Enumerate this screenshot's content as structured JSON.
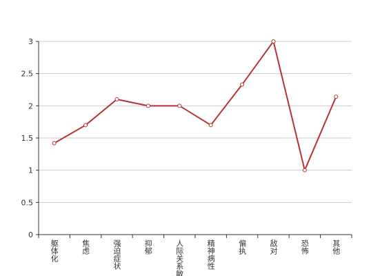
{
  "chart_data": {
    "type": "line",
    "categories": [
      "躯体化",
      "焦虑",
      "强迫症状",
      "抑郁",
      "人际关系敏感",
      "精神病性",
      "偏执",
      "敌对",
      "恐怖",
      "其他"
    ],
    "series": [
      {
        "name": "",
        "color": "#b83232",
        "values": [
          1.42,
          1.7,
          2.1,
          2.0,
          2.0,
          1.7,
          2.33,
          3.0,
          1.0,
          2.14
        ]
      }
    ],
    "ylim": [
      0,
      3
    ],
    "yticks": [
      0,
      0.5,
      1,
      1.5,
      2,
      2.5,
      3
    ],
    "grid": true
  }
}
